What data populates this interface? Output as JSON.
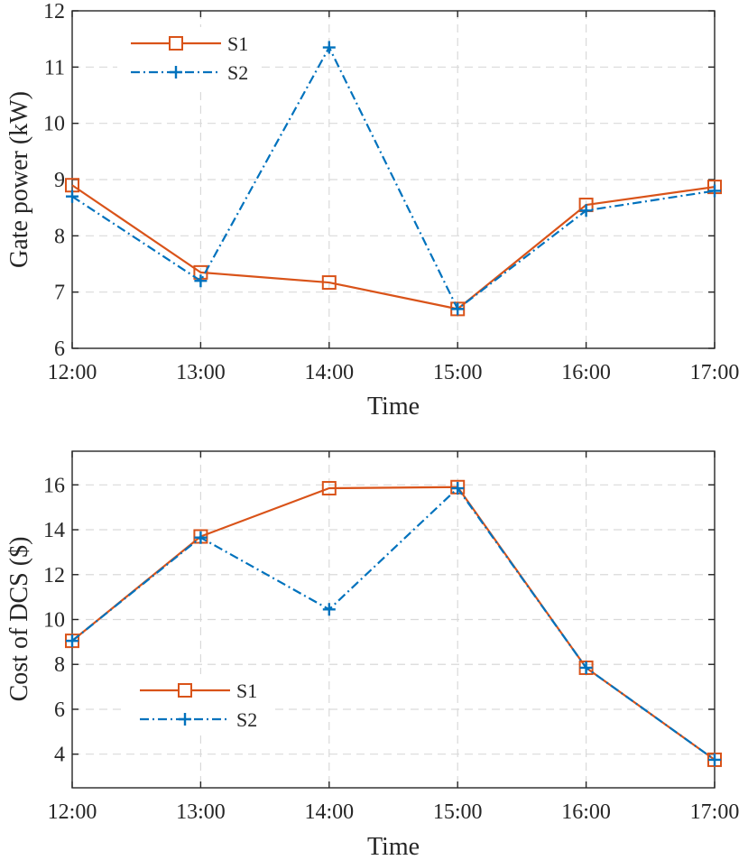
{
  "chart_data": [
    {
      "type": "line",
      "categories": [
        "12:00",
        "13:00",
        "14:00",
        "15:00",
        "16:00",
        "17:00"
      ],
      "ylabel": "Gate power (kW)",
      "xlabel": "Time",
      "ylim": [
        6,
        12
      ],
      "yticks": [
        "6",
        "7",
        "8",
        "9",
        "10",
        "11",
        "12"
      ],
      "legend_position": "top-left",
      "grid": true,
      "series": [
        {
          "name": "S1",
          "values": [
            8.9,
            7.35,
            7.17,
            6.7,
            8.55,
            8.87
          ],
          "color": "#d95319",
          "style": "solid",
          "marker": "square"
        },
        {
          "name": "S2",
          "values": [
            8.7,
            7.2,
            11.35,
            6.7,
            8.45,
            8.8
          ],
          "color": "#0072bd",
          "style": "dashdot",
          "marker": "plus"
        }
      ]
    },
    {
      "type": "line",
      "categories": [
        "12:00",
        "13:00",
        "14:00",
        "15:00",
        "16:00",
        "17:00"
      ],
      "ylabel": "Cost of DCS ($)",
      "xlabel": "Time",
      "ylim": [
        2.5,
        17.5
      ],
      "yticks": [
        "4",
        "6",
        "8",
        "10",
        "12",
        "14",
        "16"
      ],
      "legend_position": "bottom-left",
      "grid": true,
      "series": [
        {
          "name": "S1",
          "values": [
            9.05,
            13.7,
            15.85,
            15.9,
            7.85,
            3.75
          ],
          "color": "#d95319",
          "style": "solid",
          "marker": "square"
        },
        {
          "name": "S2",
          "values": [
            9.05,
            13.65,
            10.45,
            15.85,
            7.85,
            3.75
          ],
          "color": "#0072bd",
          "style": "dashdot",
          "marker": "plus"
        }
      ]
    }
  ]
}
